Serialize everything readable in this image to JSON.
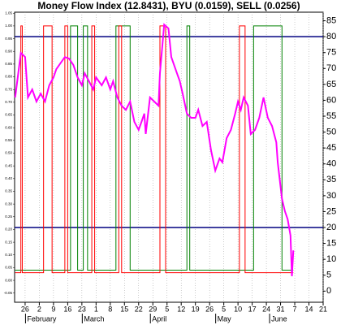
{
  "chart_data": {
    "type": "line",
    "title": "Money Flow Index (12.8431), BYU (0.0159), SELL (0.0256)",
    "xlim": [
      -3.7,
      105
    ],
    "xticks": [
      {
        "value": 0,
        "label": "26"
      },
      {
        "value": 5,
        "label": "2"
      },
      {
        "value": 10,
        "label": "9"
      },
      {
        "value": 15,
        "label": "16"
      },
      {
        "value": 20,
        "label": "23"
      },
      {
        "value": 25,
        "label": "1"
      },
      {
        "value": 30,
        "label": "8"
      },
      {
        "value": 35,
        "label": "15"
      },
      {
        "value": 40,
        "label": "22"
      },
      {
        "value": 45,
        "label": "29"
      },
      {
        "value": 50,
        "label": "5"
      },
      {
        "value": 55,
        "label": "12"
      },
      {
        "value": 60,
        "label": "19"
      },
      {
        "value": 65,
        "label": "26"
      },
      {
        "value": 70,
        "label": "5"
      },
      {
        "value": 75,
        "label": "10"
      },
      {
        "value": 80,
        "label": "17"
      },
      {
        "value": 85,
        "label": "24"
      },
      {
        "value": 90,
        "label": "31"
      },
      {
        "value": 95,
        "label": "7"
      },
      {
        "value": 100,
        "label": "14"
      },
      {
        "value": 105,
        "label": "21"
      }
    ],
    "months": [
      {
        "label": "February",
        "x": 3
      },
      {
        "label": "March",
        "x": 23
      },
      {
        "label": "April",
        "x": 47
      },
      {
        "label": "May",
        "x": 70
      },
      {
        "label": "June",
        "x": 89
      }
    ],
    "ylim": [
      -3.5,
      87.7
    ],
    "yticks": [
      0,
      5,
      10,
      15,
      20,
      25,
      30,
      35,
      40,
      45,
      50,
      55,
      60,
      65,
      70,
      75,
      80,
      85
    ],
    "y2lim": [
      -0.086,
      1.054
    ],
    "y2ticks": [
      1.05,
      {
        "value": 1,
        "label": "1.00"
      },
      0.95,
      {
        "value": 0.9,
        "label": "0.90"
      },
      0.85,
      {
        "value": 0.8,
        "label": "0.80"
      },
      0.75,
      {
        "value": 0.7,
        "label": "0.70"
      },
      0.65,
      {
        "value": 0.6,
        "label": "0.60"
      },
      0.55,
      {
        "value": 0.5,
        "label": "0.50"
      },
      0.45,
      {
        "value": 0.4,
        "label": "0.40"
      },
      0.35,
      {
        "value": 0.3,
        "label": "0.30"
      },
      0.25,
      {
        "value": 0.2,
        "label": "0.20"
      },
      0.15,
      {
        "value": 0.1,
        "label": "0.10"
      },
      0.05,
      {
        "value": 0,
        "label": "0.00"
      },
      -0.05
    ],
    "hlines": [
      80,
      20
    ],
    "hline_color": "#000080",
    "grid": true,
    "series": [
      {
        "color": "#ff00ff",
        "x": [
          -3.5,
          -1.5,
          0,
          1,
          2.5,
          4,
          5.5,
          7,
          8.5,
          10,
          11,
          14,
          15.5,
          17,
          18.5,
          20,
          21,
          22.5,
          24,
          25,
          27,
          28.5,
          30,
          31,
          32.5,
          34,
          35.5,
          37,
          38.5,
          40,
          41,
          42,
          42.5,
          44,
          45.5,
          47,
          47.5,
          49,
          50.5,
          51.5,
          53.5,
          54.5,
          55.5,
          57,
          58.5,
          60,
          61,
          62.5,
          64,
          65.5,
          67,
          68.5,
          69.5,
          71,
          72.5,
          74,
          75,
          76,
          77,
          78.5,
          79.5,
          81,
          82.5,
          84,
          85.5,
          87,
          88.5,
          89,
          90.5,
          91.5,
          92.5,
          93.5,
          94,
          94.5
        ],
        "values": [
          60.9,
          74.9,
          73.6,
          60.9,
          63.4,
          59.6,
          62.1,
          59.6,
          64.7,
          67.2,
          69.8,
          73.6,
          73.1,
          71.1,
          67.2,
          64.7,
          68.5,
          66,
          63.4,
          67.2,
          64.7,
          67.2,
          63.4,
          66,
          60.9,
          58.3,
          57,
          59.6,
          53.2,
          50.7,
          53.2,
          55.8,
          49.4,
          60.9,
          59.6,
          58.3,
          68.5,
          83.8,
          82.6,
          73.6,
          68.5,
          66,
          62.1,
          55.8,
          54.5,
          54.5,
          57,
          51.9,
          53.2,
          44.3,
          37.9,
          41.7,
          40.5,
          48.1,
          50.7,
          55.8,
          59.6,
          57,
          60.9,
          58.3,
          49.4,
          50.7,
          54.5,
          60.9,
          54.5,
          51.9,
          46.8,
          40.5,
          29,
          25.2,
          22.6,
          17.5,
          4.7,
          12.8
        ]
      },
      {
        "color": "#ff0000",
        "axis": "y2",
        "x": [
          -3.5,
          -1.5,
          -1.5,
          -1,
          -1,
          6.5,
          6.5,
          9.5,
          9.5,
          14,
          14,
          15,
          15,
          23.5,
          23.5,
          24.5,
          24.5,
          33,
          33,
          34,
          34,
          47.5,
          47.5,
          49.5,
          49.5,
          75.5,
          75.5,
          77.5,
          77.5,
          94.5
        ],
        "values": [
          0.03,
          0.03,
          1,
          1,
          0.03,
          0.03,
          1,
          1,
          0.03,
          0.03,
          1,
          1,
          0.03,
          0.03,
          1,
          1,
          0.03,
          0.03,
          1,
          1,
          0.03,
          0.03,
          1,
          1,
          0.03,
          0.03,
          1,
          1,
          0.03,
          0.03
        ]
      },
      {
        "color": "#008000",
        "axis": "y2",
        "x": [
          -3.5,
          16,
          16,
          18.5,
          18.5,
          20.5,
          20.5,
          22,
          22,
          32,
          32,
          37,
          37,
          57,
          57,
          58,
          58,
          80.5,
          80.5,
          90.5,
          90.5,
          94.5
        ],
        "values": [
          0.04,
          0.04,
          1,
          1,
          0.04,
          0.04,
          1,
          1,
          0.04,
          0.04,
          1,
          1,
          0.04,
          0.04,
          1,
          1,
          0.04,
          0.04,
          1,
          1,
          0.04,
          0.04
        ]
      }
    ]
  }
}
